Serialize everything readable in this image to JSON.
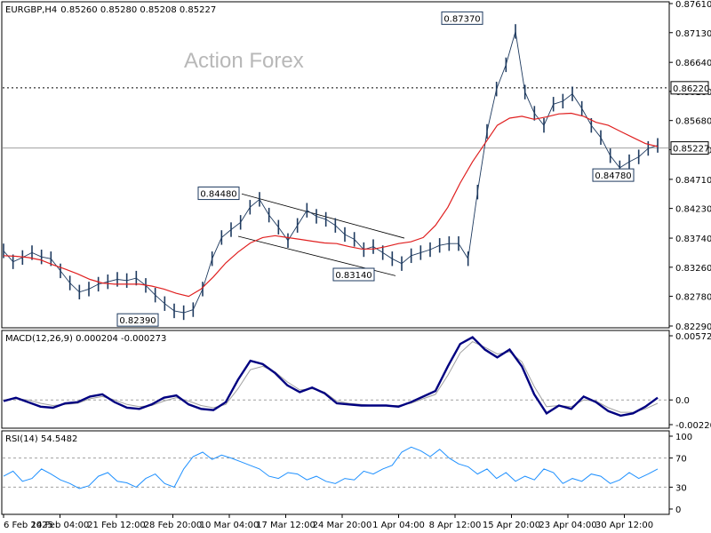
{
  "chart_data": {
    "type": "line",
    "symbol": "EURGBP,H4",
    "ohlc_text": "0.85260 0.85280 0.85208 0.85227",
    "watermark": "Action Forex",
    "x_labels": [
      "6 Feb 2025",
      "14 Feb 04:00",
      "21 Feb 12:00",
      "28 Feb 20:00",
      "10 Mar 04:00",
      "17 Mar 12:00",
      "24 Mar 20:00",
      "1 Apr 04:00",
      "8 Apr 12:00",
      "15 Apr 20:00",
      "23 Apr 04:00",
      "30 Apr 12:00"
    ],
    "price": {
      "ylim": [
        0.8229,
        0.8761
      ],
      "ticks": [
        "0.87610",
        "0.87130",
        "0.86640",
        "0.86160",
        "0.85680",
        "0.85200",
        "0.84710",
        "0.84230",
        "0.83740",
        "0.83260",
        "0.82780",
        "0.82290"
      ],
      "current": "0.85227",
      "current_value": 0.85227,
      "resistance": "0.86220",
      "resistance_value": 0.8622,
      "close_series": [
        0.8353,
        0.8335,
        0.8342,
        0.835,
        0.8343,
        0.834,
        0.832,
        0.83,
        0.8285,
        0.829,
        0.8298,
        0.8302,
        0.8306,
        0.8304,
        0.8308,
        0.8296,
        0.828,
        0.8266,
        0.8254,
        0.8251,
        0.8256,
        0.829,
        0.834,
        0.8375,
        0.8388,
        0.84,
        0.8425,
        0.8438,
        0.8412,
        0.8392,
        0.837,
        0.8395,
        0.842,
        0.841,
        0.8405,
        0.8395,
        0.838,
        0.8372,
        0.8355,
        0.836,
        0.835,
        0.834,
        0.8332,
        0.8345,
        0.835,
        0.8355,
        0.8362,
        0.8365,
        0.8365,
        0.834,
        0.845,
        0.855,
        0.862,
        0.866,
        0.8715,
        0.8615,
        0.858,
        0.856,
        0.8595,
        0.86,
        0.8612,
        0.8588,
        0.856,
        0.854,
        0.851,
        0.849,
        0.85,
        0.8508,
        0.8522,
        0.8527
      ],
      "ma_series": [
        0.8345,
        0.8344,
        0.8342,
        0.8338,
        0.833,
        0.8323,
        0.8315,
        0.8306,
        0.83,
        0.8298,
        0.8298,
        0.8298,
        0.8295,
        0.829,
        0.8283,
        0.8278,
        0.829,
        0.831,
        0.8333,
        0.8351,
        0.8366,
        0.8375,
        0.8378,
        0.8375,
        0.8372,
        0.8369,
        0.8366,
        0.8365,
        0.836,
        0.8356,
        0.8356,
        0.836,
        0.8365,
        0.8368,
        0.8375,
        0.8395,
        0.8425,
        0.8465,
        0.85,
        0.853,
        0.856,
        0.8572,
        0.8575,
        0.857,
        0.8574,
        0.8579,
        0.858,
        0.8575,
        0.8565,
        0.856,
        0.855,
        0.854,
        0.853,
        0.8525
      ]
    },
    "annotations": [
      {
        "text": "0.87370",
        "value": 0.8737
      },
      {
        "text": "0.84480",
        "value": 0.8448
      },
      {
        "text": "0.83140",
        "value": 0.8314
      },
      {
        "text": "0.82390",
        "value": 0.8239
      },
      {
        "text": "0.84780",
        "value": 0.8478
      }
    ],
    "macd": {
      "label": "MACD(12,26,9) 0.000204 -0.000273",
      "ylim": [
        -0.002204,
        0.005727
      ],
      "ticks": [
        "0.005727",
        "0.0",
        "-0.002204"
      ],
      "zero_text": "0.0",
      "line_series": [
        -0.0001,
        0.0002,
        -0.0002,
        -0.0006,
        -0.0007,
        -0.0003,
        -0.0002,
        0.0003,
        0.0005,
        -0.0002,
        -0.0007,
        -0.0008,
        -0.0004,
        0.0002,
        0.0004,
        -0.0004,
        -0.0008,
        -0.0009,
        -0.0002,
        0.0018,
        0.0035,
        0.0032,
        0.0024,
        0.0013,
        0.0007,
        0.0011,
        0.0006,
        -0.0003,
        -0.0004,
        -0.0005,
        -0.0005,
        -0.0005,
        -0.0006,
        -0.0002,
        0.0003,
        0.0008,
        0.003,
        0.005,
        0.0056,
        0.0045,
        0.0038,
        0.0045,
        0.003,
        0.0005,
        -0.0012,
        -0.0005,
        -0.0008,
        0.0003,
        -0.0002,
        -0.001,
        -0.0014,
        -0.0012,
        -0.0006,
        0.0002
      ],
      "signal_series": [
        0.0,
        0.0001,
        0.0,
        -0.0003,
        -0.0005,
        -0.0004,
        -0.0003,
        0.0001,
        0.0003,
        0.0,
        -0.0004,
        -0.0006,
        -0.0005,
        -0.0001,
        0.0002,
        -0.0001,
        -0.0005,
        -0.0007,
        -0.0004,
        0.001,
        0.0027,
        0.003,
        0.0025,
        0.0016,
        0.0009,
        0.001,
        0.0007,
        -0.0001,
        -0.0003,
        -0.0004,
        -0.0005,
        -0.0005,
        -0.0005,
        -0.0003,
        0.0001,
        0.0005,
        0.0022,
        0.0042,
        0.0052,
        0.0047,
        0.0041,
        0.0043,
        0.0034,
        0.0012,
        -0.0006,
        -0.0005,
        -0.0006,
        0.0,
        -0.0001,
        -0.0007,
        -0.0011,
        -0.0011,
        -0.0008,
        -0.0003
      ]
    },
    "rsi": {
      "label": "RSI(14) 54.5482",
      "ylim": [
        0,
        100
      ],
      "ticks": [
        "100",
        "70",
        "30",
        "0"
      ],
      "levels": [
        70,
        30
      ],
      "series": [
        45,
        52,
        38,
        42,
        55,
        48,
        40,
        35,
        28,
        32,
        45,
        50,
        38,
        36,
        30,
        42,
        48,
        35,
        30,
        55,
        72,
        78,
        68,
        74,
        70,
        65,
        60,
        55,
        45,
        42,
        50,
        48,
        40,
        45,
        38,
        35,
        42,
        40,
        52,
        48,
        55,
        60,
        78,
        85,
        80,
        72,
        82,
        70,
        62,
        58,
        48,
        55,
        42,
        50,
        38,
        45,
        40,
        55,
        50,
        35,
        42,
        38,
        48,
        45,
        35,
        40,
        50,
        42,
        48,
        55
      ]
    },
    "colors": {
      "candles": "#1e3a5f",
      "ma": "#e02020",
      "macd_line": "#000080",
      "macd_signal": "#a0a0a0",
      "rsi_line": "#1e90ff"
    }
  }
}
